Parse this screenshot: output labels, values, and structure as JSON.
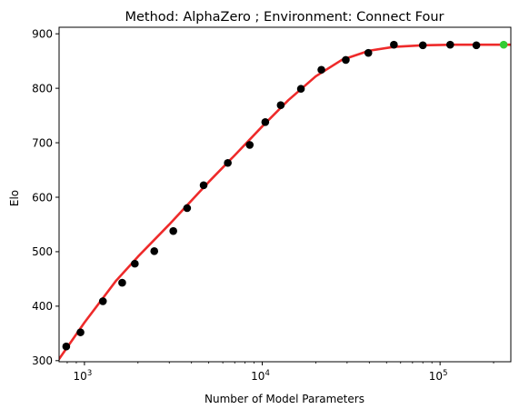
{
  "chart_data": {
    "type": "scatter",
    "title": "Method: AlphaZero ; Environment: Connect Four",
    "xlabel": "Number of Model Parameters",
    "ylabel": "Elo",
    "xscale": "log",
    "xlim": [
      720,
      250000
    ],
    "ylim": [
      298,
      912
    ],
    "grid": false,
    "legend": "none",
    "xticks": [
      {
        "value": 1000,
        "base": "10",
        "exp": "3"
      },
      {
        "value": 10000,
        "base": "10",
        "exp": "4"
      },
      {
        "value": 100000,
        "base": "10",
        "exp": "5"
      }
    ],
    "yticks": [
      300,
      400,
      500,
      600,
      700,
      800,
      900
    ],
    "series": [
      {
        "kind": "points",
        "color": "#000000",
        "points": [
          {
            "x": 790,
            "y": 326
          },
          {
            "x": 950,
            "y": 352
          },
          {
            "x": 1270,
            "y": 409
          },
          {
            "x": 1630,
            "y": 443
          },
          {
            "x": 1920,
            "y": 478
          },
          {
            "x": 2470,
            "y": 501
          },
          {
            "x": 3160,
            "y": 538
          },
          {
            "x": 3780,
            "y": 580
          },
          {
            "x": 4680,
            "y": 622
          },
          {
            "x": 6400,
            "y": 663
          },
          {
            "x": 8500,
            "y": 696
          },
          {
            "x": 10400,
            "y": 738
          },
          {
            "x": 12700,
            "y": 769
          },
          {
            "x": 16500,
            "y": 799
          },
          {
            "x": 21500,
            "y": 834
          },
          {
            "x": 29500,
            "y": 852
          },
          {
            "x": 39500,
            "y": 865
          },
          {
            "x": 55000,
            "y": 880
          },
          {
            "x": 80000,
            "y": 879
          },
          {
            "x": 114000,
            "y": 880
          },
          {
            "x": 160000,
            "y": 879
          }
        ]
      },
      {
        "kind": "highlight-point",
        "color": "#33cc33",
        "points": [
          {
            "x": 228000,
            "y": 880
          }
        ]
      },
      {
        "kind": "fit-line",
        "color": "#ee2a2a",
        "points": [
          {
            "x": 720,
            "y": 303
          },
          {
            "x": 1000,
            "y": 370
          },
          {
            "x": 1500,
            "y": 446
          },
          {
            "x": 2000,
            "y": 491
          },
          {
            "x": 3000,
            "y": 550
          },
          {
            "x": 4000,
            "y": 594
          },
          {
            "x": 5000,
            "y": 628
          },
          {
            "x": 7000,
            "y": 677
          },
          {
            "x": 10000,
            "y": 730
          },
          {
            "x": 14000,
            "y": 778
          },
          {
            "x": 20000,
            "y": 822
          },
          {
            "x": 28000,
            "y": 852
          },
          {
            "x": 40000,
            "y": 869
          },
          {
            "x": 55000,
            "y": 876
          },
          {
            "x": 80000,
            "y": 879
          },
          {
            "x": 120000,
            "y": 880
          },
          {
            "x": 250000,
            "y": 880
          }
        ]
      }
    ]
  }
}
